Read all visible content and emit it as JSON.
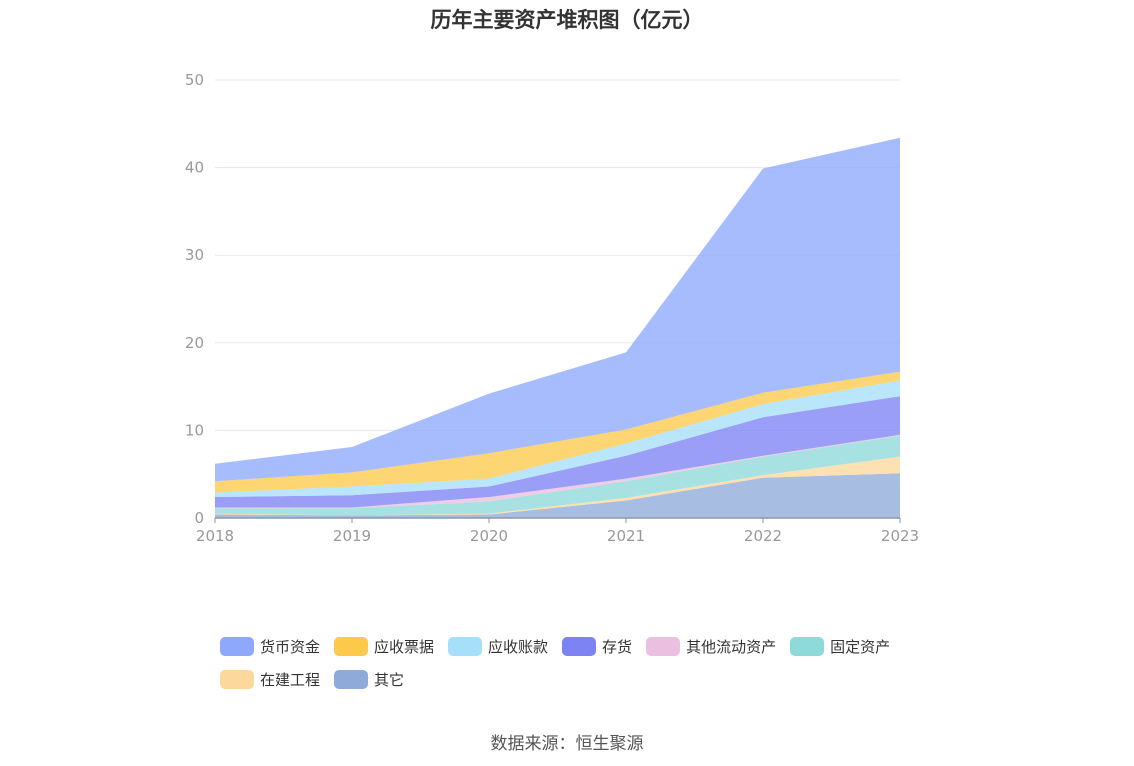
{
  "chart_data": {
    "type": "area",
    "stacked": true,
    "title": "历年主要资产堆积图（亿元）",
    "x": [
      "2018",
      "2019",
      "2020",
      "2021",
      "2022",
      "2023"
    ],
    "ylim": [
      0,
      50
    ],
    "yticks": [
      0,
      10,
      20,
      30,
      40,
      50
    ],
    "grid": true,
    "legend_position": "bottom",
    "series": [
      {
        "name": "其它",
        "color": "#8eaad8",
        "values": [
          0.4,
          0.3,
          0.4,
          2.0,
          4.6,
          5.1
        ]
      },
      {
        "name": "在建工程",
        "color": "#fdd89c",
        "values": [
          0.1,
          0.0,
          0.1,
          0.3,
          0.3,
          1.9
        ]
      },
      {
        "name": "固定资产",
        "color": "#8ed9d9",
        "values": [
          0.6,
          0.8,
          1.4,
          1.9,
          2.1,
          2.4
        ]
      },
      {
        "name": "其他流动资产",
        "color": "#eabfdf",
        "values": [
          0.1,
          0.1,
          0.5,
          0.3,
          0.1,
          0.1
        ]
      },
      {
        "name": "存货",
        "color": "#7d83f3",
        "values": [
          1.2,
          1.4,
          1.2,
          2.6,
          4.4,
          4.4
        ]
      },
      {
        "name": "应收账款",
        "color": "#a6dffa",
        "values": [
          0.5,
          1.0,
          0.9,
          1.4,
          1.5,
          1.8
        ]
      },
      {
        "name": "应收票据",
        "color": "#fcc94b",
        "values": [
          1.3,
          1.6,
          2.9,
          1.6,
          1.3,
          1.0
        ]
      },
      {
        "name": "货币资金",
        "color": "#8ea9fb",
        "values": [
          2.0,
          2.9,
          6.8,
          8.8,
          25.6,
          26.7
        ]
      }
    ]
  },
  "legend": {
    "items": [
      {
        "label": "货币资金",
        "color": "#8ea9fb"
      },
      {
        "label": "应收票据",
        "color": "#fcc94b"
      },
      {
        "label": "应收账款",
        "color": "#a6dffa"
      },
      {
        "label": "存货",
        "color": "#7d83f3"
      },
      {
        "label": "其他流动资产",
        "color": "#eabfdf"
      },
      {
        "label": "固定资产",
        "color": "#8ed9d9"
      },
      {
        "label": "在建工程",
        "color": "#fdd89c"
      },
      {
        "label": "其它",
        "color": "#8eaad8"
      }
    ]
  },
  "source": "数据来源：恒生聚源"
}
